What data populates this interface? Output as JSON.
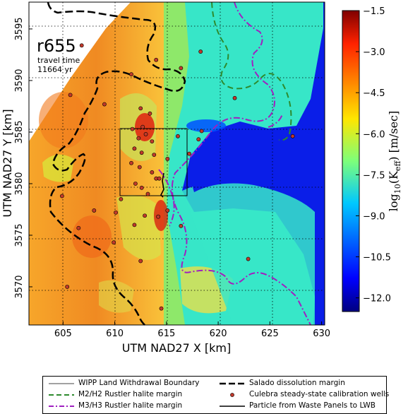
{
  "map": {
    "run_label": "r655",
    "travel_time_label": "travel time",
    "travel_time_value": "11664 yr",
    "x_axis_title": "UTM NAD27 X [km]",
    "y_axis_title": "UTM NAD27 Y [km]",
    "x_ticks": [
      "605",
      "610",
      "615",
      "620",
      "625",
      "630"
    ],
    "x_tick_values": [
      605,
      610,
      615,
      620,
      625,
      630
    ],
    "y_ticks": [
      "3570",
      "3575",
      "3580",
      "3585",
      "3590",
      "3595"
    ],
    "y_tick_values": [
      3570,
      3575,
      3580,
      3585,
      3590,
      3595
    ],
    "x_range": [
      601.7,
      630.3
    ],
    "y_range": [
      3566.3,
      3597.6
    ]
  },
  "colorbar": {
    "title_prefix": "log",
    "title_sub": "10",
    "title_body": "(K",
    "title_eff": "eff",
    "title_units": ") [m/sec]",
    "ticks": [
      "−1.5",
      "−3.0",
      "−4.5",
      "−6.0",
      "−7.5",
      "−9.0",
      "−10.5",
      "−12.0"
    ],
    "tick_values": [
      -1.5,
      -3.0,
      -4.5,
      -6.0,
      -7.5,
      -9.0,
      -10.5,
      -12.0
    ],
    "range": [
      -12.5,
      -1.5
    ],
    "colormap": "jet"
  },
  "legend": {
    "wipp_boundary": "WIPP Land Withdrawal Boundary",
    "m2h2_margin": "M2/H2 Rustler halite margin",
    "m3h3_margin": "M3/H3 Rustler halite margin",
    "salado_margin": "Salado dissolution margin",
    "calibration_wells": "Culebra steady-state calibration wells",
    "particle_path": "Particle from Waste Panels to LWB"
  },
  "colors": {
    "wells": "#c0392b",
    "m2h2": "#2e8b2e",
    "m3h3": "#a020c0",
    "salado": "#000000",
    "low_k": "#00008f",
    "high_k": "#d02010"
  },
  "wells": [
    [
      606.8,
      3593.4
    ],
    [
      605.7,
      3588.6
    ],
    [
      611.6,
      3590.6
    ],
    [
      614.0,
      3592.0
    ],
    [
      616.4,
      3591.2
    ],
    [
      618.3,
      3592.8
    ],
    [
      621.6,
      3588.3
    ],
    [
      627.2,
      3584.6
    ],
    [
      609.0,
      3587.7
    ],
    [
      612.5,
      3587.3
    ],
    [
      613.4,
      3586.8
    ],
    [
      611.7,
      3585.3
    ],
    [
      612.7,
      3585.5
    ],
    [
      613.0,
      3584.8
    ],
    [
      612.3,
      3584.4
    ],
    [
      613.6,
      3584.1
    ],
    [
      611.9,
      3583.4
    ],
    [
      612.6,
      3583.0
    ],
    [
      613.8,
      3582.8
    ],
    [
      615.1,
      3582.4
    ],
    [
      611.6,
      3582.0
    ],
    [
      612.4,
      3581.6
    ],
    [
      613.6,
      3581.1
    ],
    [
      614.0,
      3580.5
    ],
    [
      612.0,
      3580.0
    ],
    [
      612.6,
      3579.6
    ],
    [
      613.2,
      3579.0
    ],
    [
      614.3,
      3580.5
    ],
    [
      610.6,
      3578.5
    ],
    [
      617.2,
      3582.9
    ],
    [
      618.1,
      3584.3
    ],
    [
      618.4,
      3585.1
    ],
    [
      616.1,
      3584.6
    ],
    [
      608.0,
      3577.4
    ],
    [
      604.9,
      3578.8
    ],
    [
      610.1,
      3577.2
    ],
    [
      612.9,
      3576.9
    ],
    [
      615.1,
      3577.4
    ],
    [
      616.4,
      3575.9
    ],
    [
      611.9,
      3576.0
    ],
    [
      609.9,
      3574.3
    ],
    [
      614.2,
      3576.8
    ],
    [
      612.5,
      3572.5
    ],
    [
      606.5,
      3575.7
    ],
    [
      614.5,
      3567.9
    ],
    [
      605.4,
      3570.0
    ],
    [
      622.9,
      3572.7
    ]
  ]
}
